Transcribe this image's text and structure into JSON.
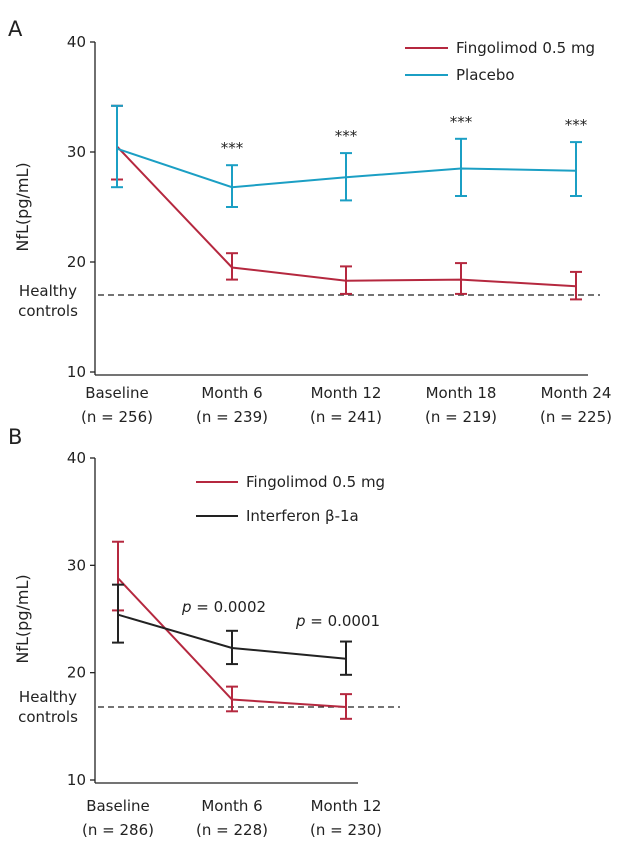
{
  "chart_data": [
    {
      "panel": "A",
      "type": "line",
      "ylabel": "NfL(pg/mL)",
      "ylim": [
        10,
        40
      ],
      "yticks": [
        10,
        20,
        30,
        40
      ],
      "categories": [
        [
          "Baseline",
          "(n = 256)"
        ],
        [
          "Month 6",
          "(n = 239)"
        ],
        [
          "Month 12",
          "(n = 241)"
        ],
        [
          "Month 18",
          "(n = 219)"
        ],
        [
          "Month 24",
          "(n = 225)"
        ]
      ],
      "reference_line": {
        "label": [
          "Healthy",
          "controls"
        ],
        "value": 17,
        "style": "dashed"
      },
      "annotations": [
        "",
        "***",
        "***",
        "***",
        "***"
      ],
      "legend_position": "top-right",
      "series": [
        {
          "name": "Fingolimod 0.5 mg",
          "color": "#b5283f",
          "values": [
            30.5,
            19.5,
            18.3,
            18.4,
            17.8
          ],
          "err_low": [
            27.5,
            18.4,
            17.1,
            17.1,
            16.6
          ],
          "err_high": [
            34.2,
            20.8,
            19.6,
            19.9,
            19.1
          ]
        },
        {
          "name": "Placebo",
          "color": "#1b9fc4",
          "values": [
            30.3,
            26.8,
            27.7,
            28.5,
            28.3
          ],
          "err_low": [
            26.8,
            25.0,
            25.6,
            26.0,
            26.0
          ],
          "err_high": [
            34.2,
            28.8,
            29.9,
            31.2,
            30.9
          ]
        }
      ]
    },
    {
      "panel": "B",
      "type": "line",
      "ylabel": "NfL(pg/mL)",
      "ylim": [
        10,
        40
      ],
      "yticks": [
        10,
        20,
        30,
        40
      ],
      "categories": [
        [
          "Baseline",
          "(n = 286)"
        ],
        [
          "Month 6",
          "(n = 228)"
        ],
        [
          "Month 12",
          "(n = 230)"
        ]
      ],
      "reference_line": {
        "label": [
          "Healthy",
          "controls"
        ],
        "value": 16.8,
        "style": "dashed"
      },
      "annotations": [
        {
          "p": "p",
          "text": " = 0.0002"
        },
        {
          "p": "p",
          "text": " = 0.0001"
        }
      ],
      "legend_position": "top",
      "series": [
        {
          "name": "Fingolimod 0.5 mg",
          "color": "#b5283f",
          "values": [
            28.8,
            17.5,
            16.8
          ],
          "err_low": [
            25.8,
            16.4,
            15.7
          ],
          "err_high": [
            32.2,
            18.7,
            18.0
          ]
        },
        {
          "name": "Interferon β-1a",
          "color": "#222222",
          "values": [
            25.4,
            22.3,
            21.3
          ],
          "err_low": [
            22.8,
            20.8,
            19.8
          ],
          "err_high": [
            28.2,
            23.9,
            22.9
          ]
        }
      ]
    }
  ]
}
